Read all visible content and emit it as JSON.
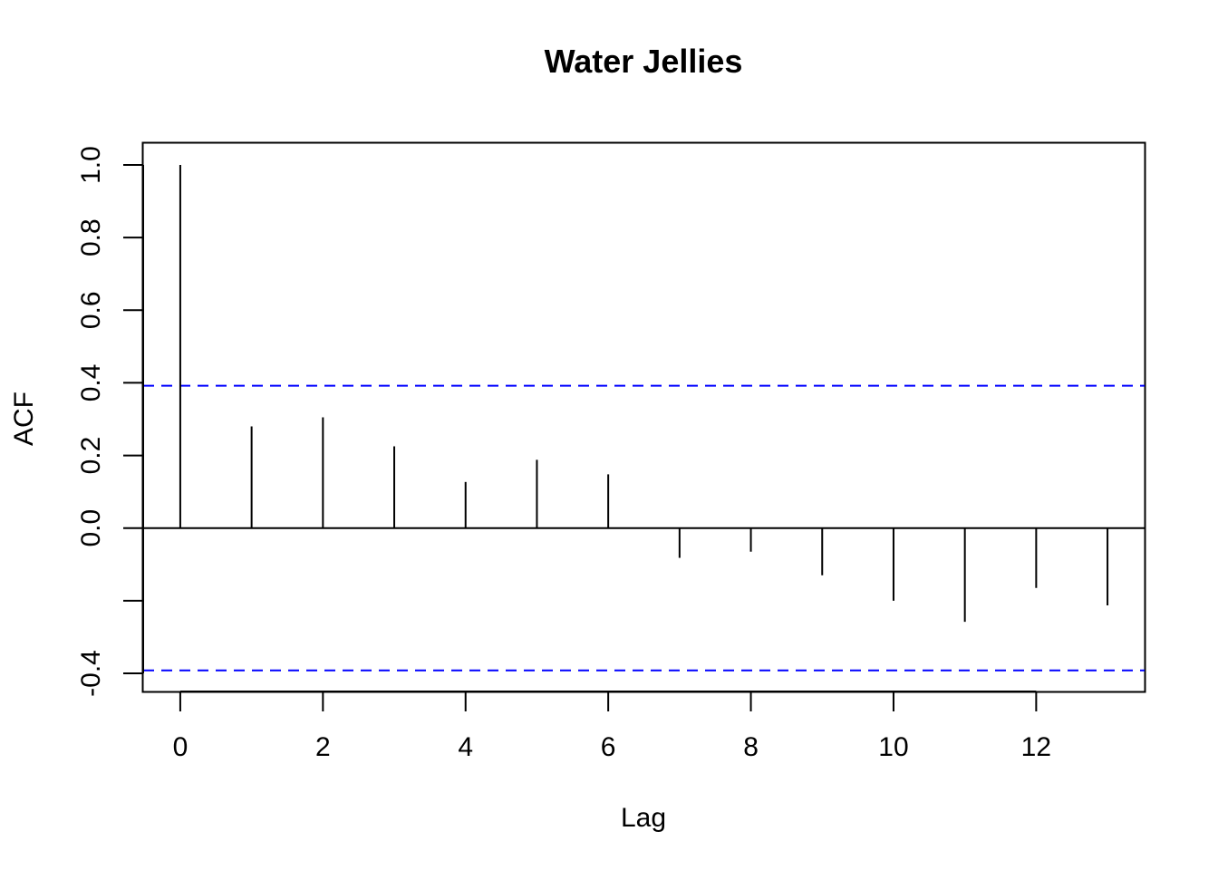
{
  "chart_data": {
    "type": "bar",
    "title": "Water Jellies",
    "xlabel": "Lag",
    "ylabel": "ACF",
    "x": [
      0,
      1,
      2,
      3,
      4,
      5,
      6,
      7,
      8,
      9,
      10,
      11,
      12,
      13
    ],
    "values": [
      1.0,
      0.28,
      0.305,
      0.225,
      0.127,
      0.188,
      0.148,
      -0.082,
      -0.065,
      -0.13,
      -0.2,
      -0.258,
      -0.165,
      -0.213
    ],
    "confidence_band": [
      0.392,
      -0.392
    ],
    "xlim": [
      -0.52,
      13.52
    ],
    "ylim": [
      -0.45,
      1.06
    ],
    "x_ticks": [
      0,
      2,
      4,
      6,
      8,
      10,
      12
    ],
    "x_tick_labels": [
      "0",
      "2",
      "4",
      "6",
      "8",
      "10",
      "12"
    ],
    "y_ticks": [
      -0.4,
      -0.2,
      0.0,
      0.2,
      0.4,
      0.6,
      0.8,
      1.0
    ],
    "y_tick_labels": [
      "-0.4",
      "",
      "0.0",
      "0.2",
      "0.4",
      "0.6",
      "0.8",
      "1.0"
    ],
    "grid": false,
    "colors": {
      "bars": "#000000",
      "confidence_band": "#0000ff",
      "axes": "#000000"
    }
  }
}
